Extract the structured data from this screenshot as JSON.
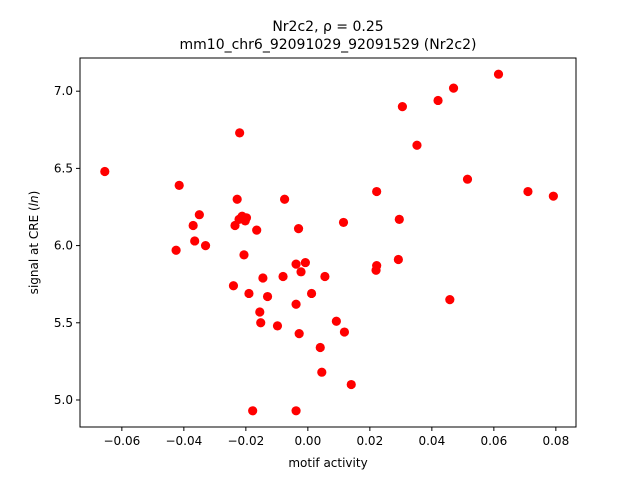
{
  "chart_data": {
    "type": "scatter",
    "title_line1": "Nr2c2, ",
    "title_rho": "ρ = 0.25",
    "title_line2": "mm10_chr6_92091029_92091529 (Nr2c2)",
    "xlabel": "motif activity",
    "ylabel": "signal at CRE (",
    "ylabel_var": "ln",
    "ylabel_end": ")",
    "xlim": [
      -0.0735,
      0.0865
    ],
    "ylim": [
      4.825,
      7.215
    ],
    "xticks": [
      -0.06,
      -0.04,
      -0.02,
      0.0,
      0.02,
      0.04,
      0.06,
      0.08
    ],
    "xtick_labels": [
      "−0.06",
      "−0.04",
      "−0.02",
      "0.00",
      "0.02",
      "0.04",
      "0.06",
      "0.08"
    ],
    "yticks": [
      5.0,
      5.5,
      6.0,
      6.5,
      7.0
    ],
    "ytick_labels": [
      "5.0",
      "5.5",
      "6.0",
      "6.5",
      "7.0"
    ],
    "marker_color": "#ff0000",
    "grid": false,
    "points": [
      {
        "x": -0.0655,
        "y": 6.48
      },
      {
        "x": -0.0415,
        "y": 6.39
      },
      {
        "x": -0.0425,
        "y": 5.97
      },
      {
        "x": -0.037,
        "y": 6.13
      },
      {
        "x": -0.035,
        "y": 6.2
      },
      {
        "x": -0.0365,
        "y": 6.03
      },
      {
        "x": -0.033,
        "y": 6.0
      },
      {
        "x": -0.022,
        "y": 6.73
      },
      {
        "x": -0.0228,
        "y": 6.3
      },
      {
        "x": -0.0235,
        "y": 6.13
      },
      {
        "x": -0.0222,
        "y": 6.17
      },
      {
        "x": -0.0212,
        "y": 6.19
      },
      {
        "x": -0.0202,
        "y": 6.16
      },
      {
        "x": -0.0198,
        "y": 6.18
      },
      {
        "x": -0.0206,
        "y": 5.94
      },
      {
        "x": -0.0165,
        "y": 6.1
      },
      {
        "x": -0.024,
        "y": 5.74
      },
      {
        "x": -0.019,
        "y": 5.69
      },
      {
        "x": -0.0145,
        "y": 5.79
      },
      {
        "x": -0.0155,
        "y": 5.57
      },
      {
        "x": -0.0152,
        "y": 5.5
      },
      {
        "x": -0.013,
        "y": 5.67
      },
      {
        "x": -0.0098,
        "y": 5.48
      },
      {
        "x": -0.0178,
        "y": 4.93
      },
      {
        "x": -0.0075,
        "y": 6.3
      },
      {
        "x": -0.003,
        "y": 6.11
      },
      {
        "x": -0.008,
        "y": 5.8
      },
      {
        "x": -0.0038,
        "y": 5.88
      },
      {
        "x": -0.0022,
        "y": 5.83
      },
      {
        "x": -0.0008,
        "y": 5.89
      },
      {
        "x": -0.0038,
        "y": 5.62
      },
      {
        "x": -0.0028,
        "y": 5.43
      },
      {
        "x": 0.0012,
        "y": 5.69
      },
      {
        "x": 0.0055,
        "y": 5.8
      },
      {
        "x": 0.004,
        "y": 5.34
      },
      {
        "x": 0.0045,
        "y": 5.18
      },
      {
        "x": -0.0038,
        "y": 4.93
      },
      {
        "x": 0.0092,
        "y": 5.51
      },
      {
        "x": 0.0118,
        "y": 5.44
      },
      {
        "x": 0.0115,
        "y": 6.15
      },
      {
        "x": 0.014,
        "y": 5.1
      },
      {
        "x": 0.0222,
        "y": 6.35
      },
      {
        "x": 0.0222,
        "y": 5.87
      },
      {
        "x": 0.022,
        "y": 5.84
      },
      {
        "x": 0.0295,
        "y": 6.17
      },
      {
        "x": 0.0292,
        "y": 5.91
      },
      {
        "x": 0.0305,
        "y": 6.9
      },
      {
        "x": 0.0352,
        "y": 6.65
      },
      {
        "x": 0.042,
        "y": 6.94
      },
      {
        "x": 0.047,
        "y": 7.02
      },
      {
        "x": 0.0458,
        "y": 5.65
      },
      {
        "x": 0.0515,
        "y": 6.43
      },
      {
        "x": 0.0615,
        "y": 7.11
      },
      {
        "x": 0.071,
        "y": 6.35
      },
      {
        "x": 0.0792,
        "y": 6.32
      }
    ]
  }
}
